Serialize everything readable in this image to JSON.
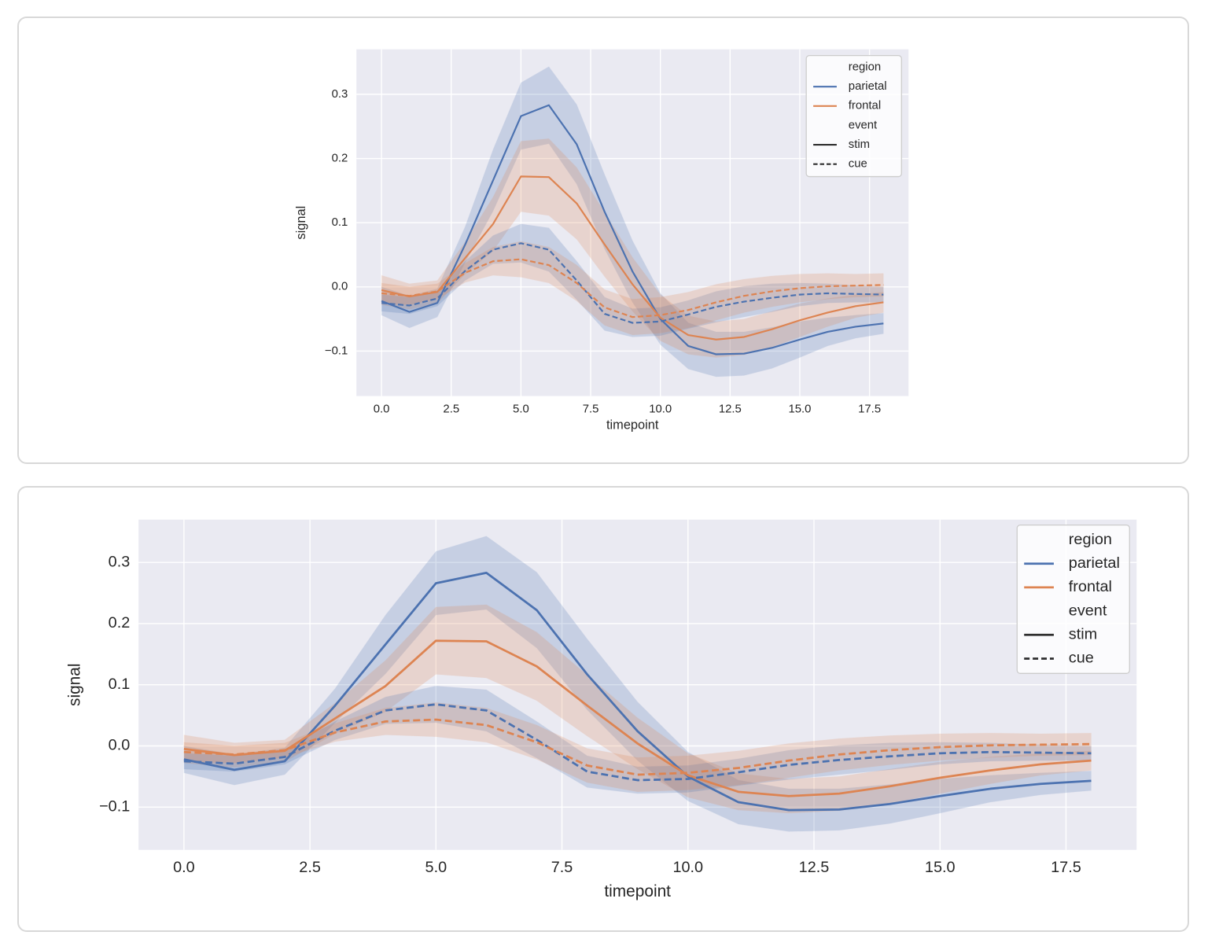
{
  "palette": {
    "parietal": "#4C72B0",
    "frontal": "#DD8452",
    "neutral": "#2E2E2E",
    "plot_background": "#EAEAF2",
    "grid": "#FFFFFF",
    "text": "#262626",
    "band_opacity": 0.22,
    "legend_background": "rgba(255,255,255,0.8)",
    "legend_border": "#CCCCCC",
    "card_border": "#D8D8D8",
    "page_background": "#FFFFFF"
  },
  "chart_data": [
    {
      "type": "line",
      "title": "",
      "xlabel": "timepoint",
      "ylabel": "signal",
      "grid": true,
      "legend_position": "upper right",
      "xlim": [
        -0.9,
        18.9
      ],
      "ylim": [
        -0.17,
        0.37
      ],
      "x_ticks": [
        0,
        2.5,
        5,
        7.5,
        10,
        12.5,
        15,
        17.5
      ],
      "x_tick_labels": [
        "0.0",
        "2.5",
        "5.0",
        "7.5",
        "10.0",
        "12.5",
        "15.0",
        "17.5"
      ],
      "y_ticks": [
        -0.1,
        0,
        0.1,
        0.2,
        0.3
      ],
      "y_tick_labels": [
        "−0.1",
        "0.0",
        "0.1",
        "0.2",
        "0.3"
      ],
      "legend": {
        "entries": [
          {
            "label": "region",
            "kind": "header"
          },
          {
            "label": "parietal",
            "kind": "line",
            "color": "parietal",
            "dash": "solid"
          },
          {
            "label": "frontal",
            "kind": "line",
            "color": "frontal",
            "dash": "solid"
          },
          {
            "label": "event",
            "kind": "header"
          },
          {
            "label": "stim",
            "kind": "line",
            "color": "neutral",
            "dash": "solid"
          },
          {
            "label": "cue",
            "kind": "line",
            "color": "neutral",
            "dash": "dashed"
          }
        ]
      },
      "x": [
        0,
        1,
        2,
        3,
        4,
        5,
        6,
        7,
        8,
        9,
        10,
        11,
        12,
        13,
        14,
        15,
        16,
        17,
        18
      ],
      "series": [
        {
          "name": "parietal-stim",
          "region": "parietal",
          "event": "stim",
          "line_style": "solid",
          "values": [
            -0.022,
            -0.039,
            -0.025,
            0.066,
            0.166,
            0.266,
            0.283,
            0.222,
            0.117,
            0.024,
            -0.05,
            -0.092,
            -0.105,
            -0.104,
            -0.095,
            -0.082,
            -0.07,
            -0.062,
            -0.057
          ],
          "ci_halfwidth": [
            0.022,
            0.025,
            0.022,
            0.028,
            0.048,
            0.052,
            0.06,
            0.062,
            0.058,
            0.048,
            0.04,
            0.036,
            0.035,
            0.034,
            0.032,
            0.028,
            0.022,
            0.018,
            0.016
          ]
        },
        {
          "name": "frontal-stim",
          "region": "frontal",
          "event": "stim",
          "line_style": "solid",
          "values": [
            -0.005,
            -0.015,
            -0.008,
            0.045,
            0.098,
            0.172,
            0.171,
            0.13,
            0.066,
            0.004,
            -0.048,
            -0.075,
            -0.082,
            -0.078,
            -0.066,
            -0.052,
            -0.04,
            -0.03,
            -0.024
          ],
          "ci_halfwidth": [
            0.023,
            0.02,
            0.018,
            0.025,
            0.042,
            0.055,
            0.06,
            0.056,
            0.05,
            0.042,
            0.036,
            0.03,
            0.028,
            0.028,
            0.028,
            0.026,
            0.022,
            0.018,
            0.016
          ]
        },
        {
          "name": "parietal-cue",
          "region": "parietal",
          "event": "cue",
          "line_style": "dashed",
          "values": [
            -0.025,
            -0.029,
            -0.018,
            0.025,
            0.058,
            0.068,
            0.058,
            0.01,
            -0.042,
            -0.056,
            -0.054,
            -0.043,
            -0.031,
            -0.023,
            -0.017,
            -0.012,
            -0.01,
            -0.011,
            -0.012
          ],
          "ci_halfwidth": [
            0.013,
            0.013,
            0.012,
            0.015,
            0.022,
            0.03,
            0.034,
            0.03,
            0.026,
            0.022,
            0.022,
            0.022,
            0.024,
            0.024,
            0.022,
            0.018,
            0.015,
            0.013,
            0.012
          ]
        },
        {
          "name": "frontal-cue",
          "region": "frontal",
          "event": "cue",
          "line_style": "dashed",
          "values": [
            -0.01,
            -0.014,
            -0.007,
            0.022,
            0.04,
            0.043,
            0.034,
            0.006,
            -0.032,
            -0.047,
            -0.044,
            -0.036,
            -0.024,
            -0.014,
            -0.007,
            -0.002,
            0.001,
            0.002,
            0.003
          ],
          "ci_halfwidth": [
            0.016,
            0.014,
            0.012,
            0.015,
            0.022,
            0.028,
            0.028,
            0.028,
            0.028,
            0.028,
            0.028,
            0.028,
            0.028,
            0.026,
            0.024,
            0.022,
            0.02,
            0.018,
            0.018
          ]
        }
      ]
    },
    {
      "type": "line",
      "title": "",
      "xlabel": "timepoint",
      "ylabel": "signal",
      "grid": true,
      "legend_position": "upper right",
      "xlim": [
        -0.9,
        18.9
      ],
      "ylim": [
        -0.17,
        0.37
      ],
      "x_ticks": [
        0,
        2.5,
        5,
        7.5,
        10,
        12.5,
        15,
        17.5
      ],
      "x_tick_labels": [
        "0.0",
        "2.5",
        "5.0",
        "7.5",
        "10.0",
        "12.5",
        "15.0",
        "17.5"
      ],
      "y_ticks": [
        -0.1,
        0,
        0.1,
        0.2,
        0.3
      ],
      "y_tick_labels": [
        "−0.1",
        "0.0",
        "0.1",
        "0.2",
        "0.3"
      ],
      "legend": {
        "entries": [
          {
            "label": "region",
            "kind": "header"
          },
          {
            "label": "parietal",
            "kind": "line",
            "color": "parietal",
            "dash": "solid"
          },
          {
            "label": "frontal",
            "kind": "line",
            "color": "frontal",
            "dash": "solid"
          },
          {
            "label": "event",
            "kind": "header"
          },
          {
            "label": "stim",
            "kind": "line",
            "color": "neutral",
            "dash": "solid"
          },
          {
            "label": "cue",
            "kind": "line",
            "color": "neutral",
            "dash": "dashed"
          }
        ]
      },
      "x": [
        0,
        1,
        2,
        3,
        4,
        5,
        6,
        7,
        8,
        9,
        10,
        11,
        12,
        13,
        14,
        15,
        16,
        17,
        18
      ],
      "series": [
        {
          "name": "parietal-stim",
          "region": "parietal",
          "event": "stim",
          "line_style": "solid",
          "values": [
            -0.022,
            -0.039,
            -0.025,
            0.066,
            0.166,
            0.266,
            0.283,
            0.222,
            0.117,
            0.024,
            -0.05,
            -0.092,
            -0.105,
            -0.104,
            -0.095,
            -0.082,
            -0.07,
            -0.062,
            -0.057
          ],
          "ci_halfwidth": [
            0.022,
            0.025,
            0.022,
            0.028,
            0.048,
            0.052,
            0.06,
            0.062,
            0.058,
            0.048,
            0.04,
            0.036,
            0.035,
            0.034,
            0.032,
            0.028,
            0.022,
            0.018,
            0.016
          ]
        },
        {
          "name": "frontal-stim",
          "region": "frontal",
          "event": "stim",
          "line_style": "solid",
          "values": [
            -0.005,
            -0.015,
            -0.008,
            0.045,
            0.098,
            0.172,
            0.171,
            0.13,
            0.066,
            0.004,
            -0.048,
            -0.075,
            -0.082,
            -0.078,
            -0.066,
            -0.052,
            -0.04,
            -0.03,
            -0.024
          ],
          "ci_halfwidth": [
            0.023,
            0.02,
            0.018,
            0.025,
            0.042,
            0.055,
            0.06,
            0.056,
            0.05,
            0.042,
            0.036,
            0.03,
            0.028,
            0.028,
            0.028,
            0.026,
            0.022,
            0.018,
            0.016
          ]
        },
        {
          "name": "parietal-cue",
          "region": "parietal",
          "event": "cue",
          "line_style": "dashed",
          "values": [
            -0.025,
            -0.029,
            -0.018,
            0.025,
            0.058,
            0.068,
            0.058,
            0.01,
            -0.042,
            -0.056,
            -0.054,
            -0.043,
            -0.031,
            -0.023,
            -0.017,
            -0.012,
            -0.01,
            -0.011,
            -0.012
          ],
          "ci_halfwidth": [
            0.013,
            0.013,
            0.012,
            0.015,
            0.022,
            0.03,
            0.034,
            0.03,
            0.026,
            0.022,
            0.022,
            0.022,
            0.024,
            0.024,
            0.022,
            0.018,
            0.015,
            0.013,
            0.012
          ]
        },
        {
          "name": "frontal-cue",
          "region": "frontal",
          "event": "cue",
          "line_style": "dashed",
          "values": [
            -0.01,
            -0.014,
            -0.007,
            0.022,
            0.04,
            0.043,
            0.034,
            0.006,
            -0.032,
            -0.047,
            -0.044,
            -0.036,
            -0.024,
            -0.014,
            -0.007,
            -0.002,
            0.001,
            0.002,
            0.003
          ],
          "ci_halfwidth": [
            0.016,
            0.014,
            0.012,
            0.015,
            0.022,
            0.028,
            0.028,
            0.028,
            0.028,
            0.028,
            0.028,
            0.028,
            0.028,
            0.026,
            0.024,
            0.022,
            0.02,
            0.018,
            0.018
          ]
        }
      ]
    }
  ]
}
